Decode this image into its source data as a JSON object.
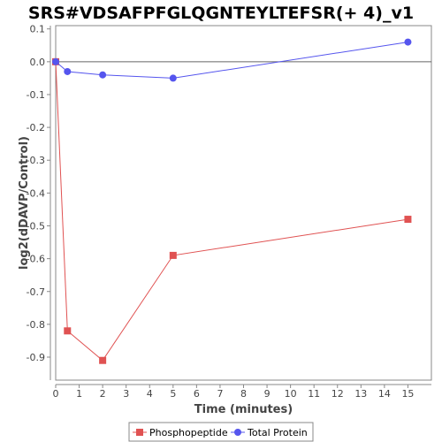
{
  "chart_data": {
    "type": "line",
    "title": "SRS#VDSAFPFGLQGNTEYLTEFSR(+ 4)_v1",
    "xlabel": "Time (minutes)",
    "ylabel": "log2(dDAVP/Control)",
    "xlim": [
      0,
      16
    ],
    "ylim": [
      -0.97,
      0.11
    ],
    "x_ticks": [
      0,
      1,
      2,
      3,
      4,
      5,
      6,
      7,
      8,
      9,
      10,
      11,
      12,
      13,
      14,
      15
    ],
    "y_ticks": [
      0.1,
      0.0,
      -0.1,
      -0.2,
      -0.3,
      -0.4,
      -0.5,
      -0.6,
      -0.7,
      -0.8,
      -0.9
    ],
    "y_tick_labels": [
      "0.1",
      "0.0",
      "-0.1",
      "-0.2",
      "-0.3",
      "-0.4",
      "-0.5",
      "-0.6",
      "-0.7",
      "-0.8",
      "-0.9"
    ],
    "zero_line": true,
    "grid": false,
    "legend_position": "bottom",
    "series": [
      {
        "name": "Phosphopeptide",
        "color": "#e05252",
        "marker": "square",
        "points": [
          [
            0,
            0.0
          ],
          [
            0.5,
            -0.82
          ],
          [
            2,
            -0.91
          ],
          [
            5,
            -0.59
          ],
          [
            15,
            -0.48
          ]
        ]
      },
      {
        "name": "Total Protein",
        "color": "#5555ee",
        "marker": "circle",
        "points": [
          [
            0,
            0.0
          ],
          [
            0.5,
            -0.03
          ],
          [
            2,
            -0.04
          ],
          [
            5,
            -0.05
          ],
          [
            15,
            0.06
          ]
        ]
      }
    ]
  }
}
